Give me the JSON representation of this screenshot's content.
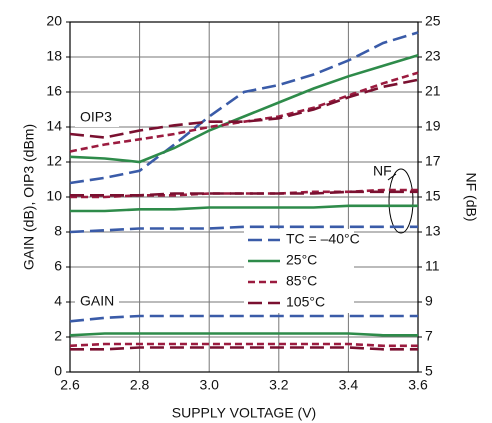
{
  "chart_data": {
    "type": "line",
    "x_label": "SUPPLY VOLTAGE (V)",
    "y_label": "GAIN (dB), OIP3 (dBm)",
    "y2_label": "NF (dB)",
    "x": [
      2.6,
      2.7,
      2.8,
      2.9,
      3.0,
      3.1,
      3.2,
      3.3,
      3.4,
      3.5,
      3.6
    ],
    "xlim": [
      2.6,
      3.6
    ],
    "xticks": [
      2.6,
      2.8,
      {
        "value": 3.0,
        "label": "3.0"
      },
      3.2,
      3.4,
      3.6
    ],
    "ylim": [
      0,
      20
    ],
    "yticks": [
      0,
      2,
      4,
      6,
      8,
      10,
      12,
      14,
      16,
      18,
      20
    ],
    "y2lim": [
      5,
      25
    ],
    "y2ticks": [
      5,
      7,
      9,
      11,
      13,
      15,
      17,
      19,
      21,
      23,
      25
    ],
    "grid": true,
    "legend": [
      {
        "name": "TC = –40°C",
        "color": "#3a5ba8",
        "dash": "long"
      },
      {
        "name": "25°C",
        "color": "#2e8b4a",
        "dash": "solid"
      },
      {
        "name": "85°C",
        "color": "#9b1b3f",
        "dash": "short"
      },
      {
        "name": "105°C",
        "color": "#7a1030",
        "dash": "long"
      }
    ],
    "annotations": [
      "OIP3",
      "NF",
      "GAIN"
    ],
    "series": [
      {
        "color": "#3a5ba8",
        "dash": "long",
        "axis": "y",
        "values": [
          10.8,
          11.1,
          11.5,
          13.0,
          14.6,
          16.0,
          16.4,
          17.0,
          17.8,
          18.8,
          19.4
        ]
      },
      {
        "color": "#2e8b4a",
        "dash": "solid",
        "axis": "y",
        "values": [
          12.3,
          12.2,
          12.0,
          12.8,
          13.8,
          14.6,
          15.4,
          16.2,
          16.9,
          17.5,
          18.1
        ]
      },
      {
        "color": "#9b1b3f",
        "dash": "short",
        "axis": "y",
        "values": [
          12.6,
          13.0,
          13.3,
          13.6,
          14.0,
          14.3,
          14.6,
          15.1,
          15.8,
          16.5,
          17.1
        ]
      },
      {
        "color": "#7a1030",
        "dash": "long",
        "axis": "y",
        "values": [
          13.6,
          13.4,
          13.8,
          14.1,
          14.3,
          14.3,
          14.5,
          15.0,
          15.7,
          16.3,
          16.7
        ]
      },
      {
        "color": "#3a5ba8",
        "dash": "long",
        "axis": "y2",
        "values": [
          13.0,
          13.1,
          13.2,
          13.2,
          13.2,
          13.3,
          13.3,
          13.3,
          13.3,
          13.3,
          13.3
        ]
      },
      {
        "color": "#2e8b4a",
        "dash": "solid",
        "axis": "y2",
        "values": [
          14.2,
          14.2,
          14.3,
          14.3,
          14.4,
          14.4,
          14.4,
          14.4,
          14.5,
          14.5,
          14.5
        ]
      },
      {
        "color": "#9b1b3f",
        "dash": "short",
        "axis": "y2",
        "values": [
          15.0,
          15.0,
          15.1,
          15.1,
          15.2,
          15.2,
          15.2,
          15.3,
          15.3,
          15.4,
          15.4
        ]
      },
      {
        "color": "#7a1030",
        "dash": "long",
        "axis": "y2",
        "values": [
          15.1,
          15.1,
          15.1,
          15.2,
          15.2,
          15.2,
          15.2,
          15.2,
          15.3,
          15.3,
          15.3
        ]
      },
      {
        "color": "#3a5ba8",
        "dash": "long",
        "axis": "y",
        "values": [
          2.9,
          3.1,
          3.2,
          3.2,
          3.2,
          3.2,
          3.2,
          3.2,
          3.2,
          3.2,
          3.2
        ]
      },
      {
        "color": "#2e8b4a",
        "dash": "solid",
        "axis": "y",
        "values": [
          2.1,
          2.2,
          2.2,
          2.2,
          2.2,
          2.2,
          2.2,
          2.2,
          2.2,
          2.1,
          2.1
        ]
      },
      {
        "color": "#9b1b3f",
        "dash": "short",
        "axis": "y",
        "values": [
          1.5,
          1.6,
          1.6,
          1.6,
          1.6,
          1.6,
          1.6,
          1.6,
          1.6,
          1.5,
          1.5
        ]
      },
      {
        "color": "#7a1030",
        "dash": "long",
        "axis": "y",
        "values": [
          1.3,
          1.3,
          1.4,
          1.4,
          1.4,
          1.4,
          1.4,
          1.4,
          1.4,
          1.3,
          1.3
        ]
      }
    ]
  }
}
